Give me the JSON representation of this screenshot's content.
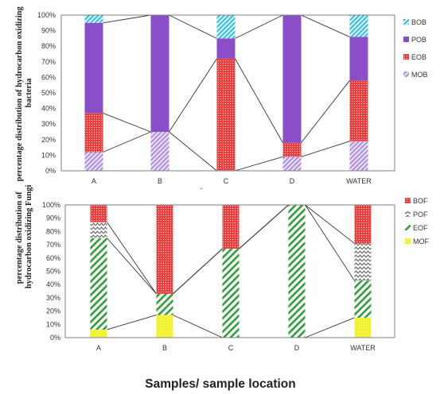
{
  "x_title": "Samples/ sample location",
  "stray_mark": "-",
  "chart_data": [
    {
      "type": "bar",
      "subtype": "100% stacked column with series lines",
      "ylabel": "percentage distribution of hydrocarbon oxidizing bacteria",
      "xlabel": "",
      "categories": [
        "A",
        "B",
        "C",
        "D",
        "WATER"
      ],
      "ylim": [
        0,
        100
      ],
      "yticks": [
        "0%",
        "10%",
        "20%",
        "30%",
        "40%",
        "50%",
        "60%",
        "70%",
        "80%",
        "90%",
        "100%"
      ],
      "legend_position": "right",
      "series": [
        {
          "name": "MOB",
          "values": [
            12,
            25,
            0,
            9,
            19
          ],
          "color": "#b89be0",
          "pattern": "diagonal-light"
        },
        {
          "name": "EOB",
          "values": [
            25,
            0,
            72,
            9,
            39
          ],
          "color": "#f03a3a",
          "pattern": "dots"
        },
        {
          "name": "POB",
          "values": [
            58,
            75,
            13,
            82,
            28
          ],
          "color": "#8a4fc8",
          "pattern": "solid"
        },
        {
          "name": "BOB",
          "values": [
            5,
            0,
            15,
            0,
            14
          ],
          "color": "#3fc6e6",
          "pattern": "diagonal"
        }
      ]
    },
    {
      "type": "bar",
      "subtype": "100% stacked column with series lines",
      "ylabel": "percentage distribution of hydrocarbon oxidizing Fungi",
      "xlabel": "",
      "categories": [
        "A",
        "B",
        "C",
        "D",
        "WATER"
      ],
      "ylim": [
        0,
        100
      ],
      "yticks": [
        "0%",
        "10%",
        "20%",
        "30%",
        "40%",
        "50%",
        "60%",
        "70%",
        "80%",
        "90%",
        "100%"
      ],
      "legend_position": "right",
      "series": [
        {
          "name": "MOF",
          "values": [
            6,
            17,
            0,
            0,
            15
          ],
          "color": "#f2f22a",
          "pattern": "dots"
        },
        {
          "name": "EOF",
          "values": [
            69,
            16,
            67,
            100,
            28
          ],
          "color": "#2f9e3a",
          "pattern": "wide-diagonal"
        },
        {
          "name": "POF",
          "values": [
            12,
            0,
            0,
            0,
            28
          ],
          "color": "#555555",
          "pattern": "zigzag"
        },
        {
          "name": "BOF",
          "values": [
            13,
            67,
            33,
            0,
            29
          ],
          "color": "#f03a3a",
          "pattern": "dots"
        }
      ]
    }
  ]
}
